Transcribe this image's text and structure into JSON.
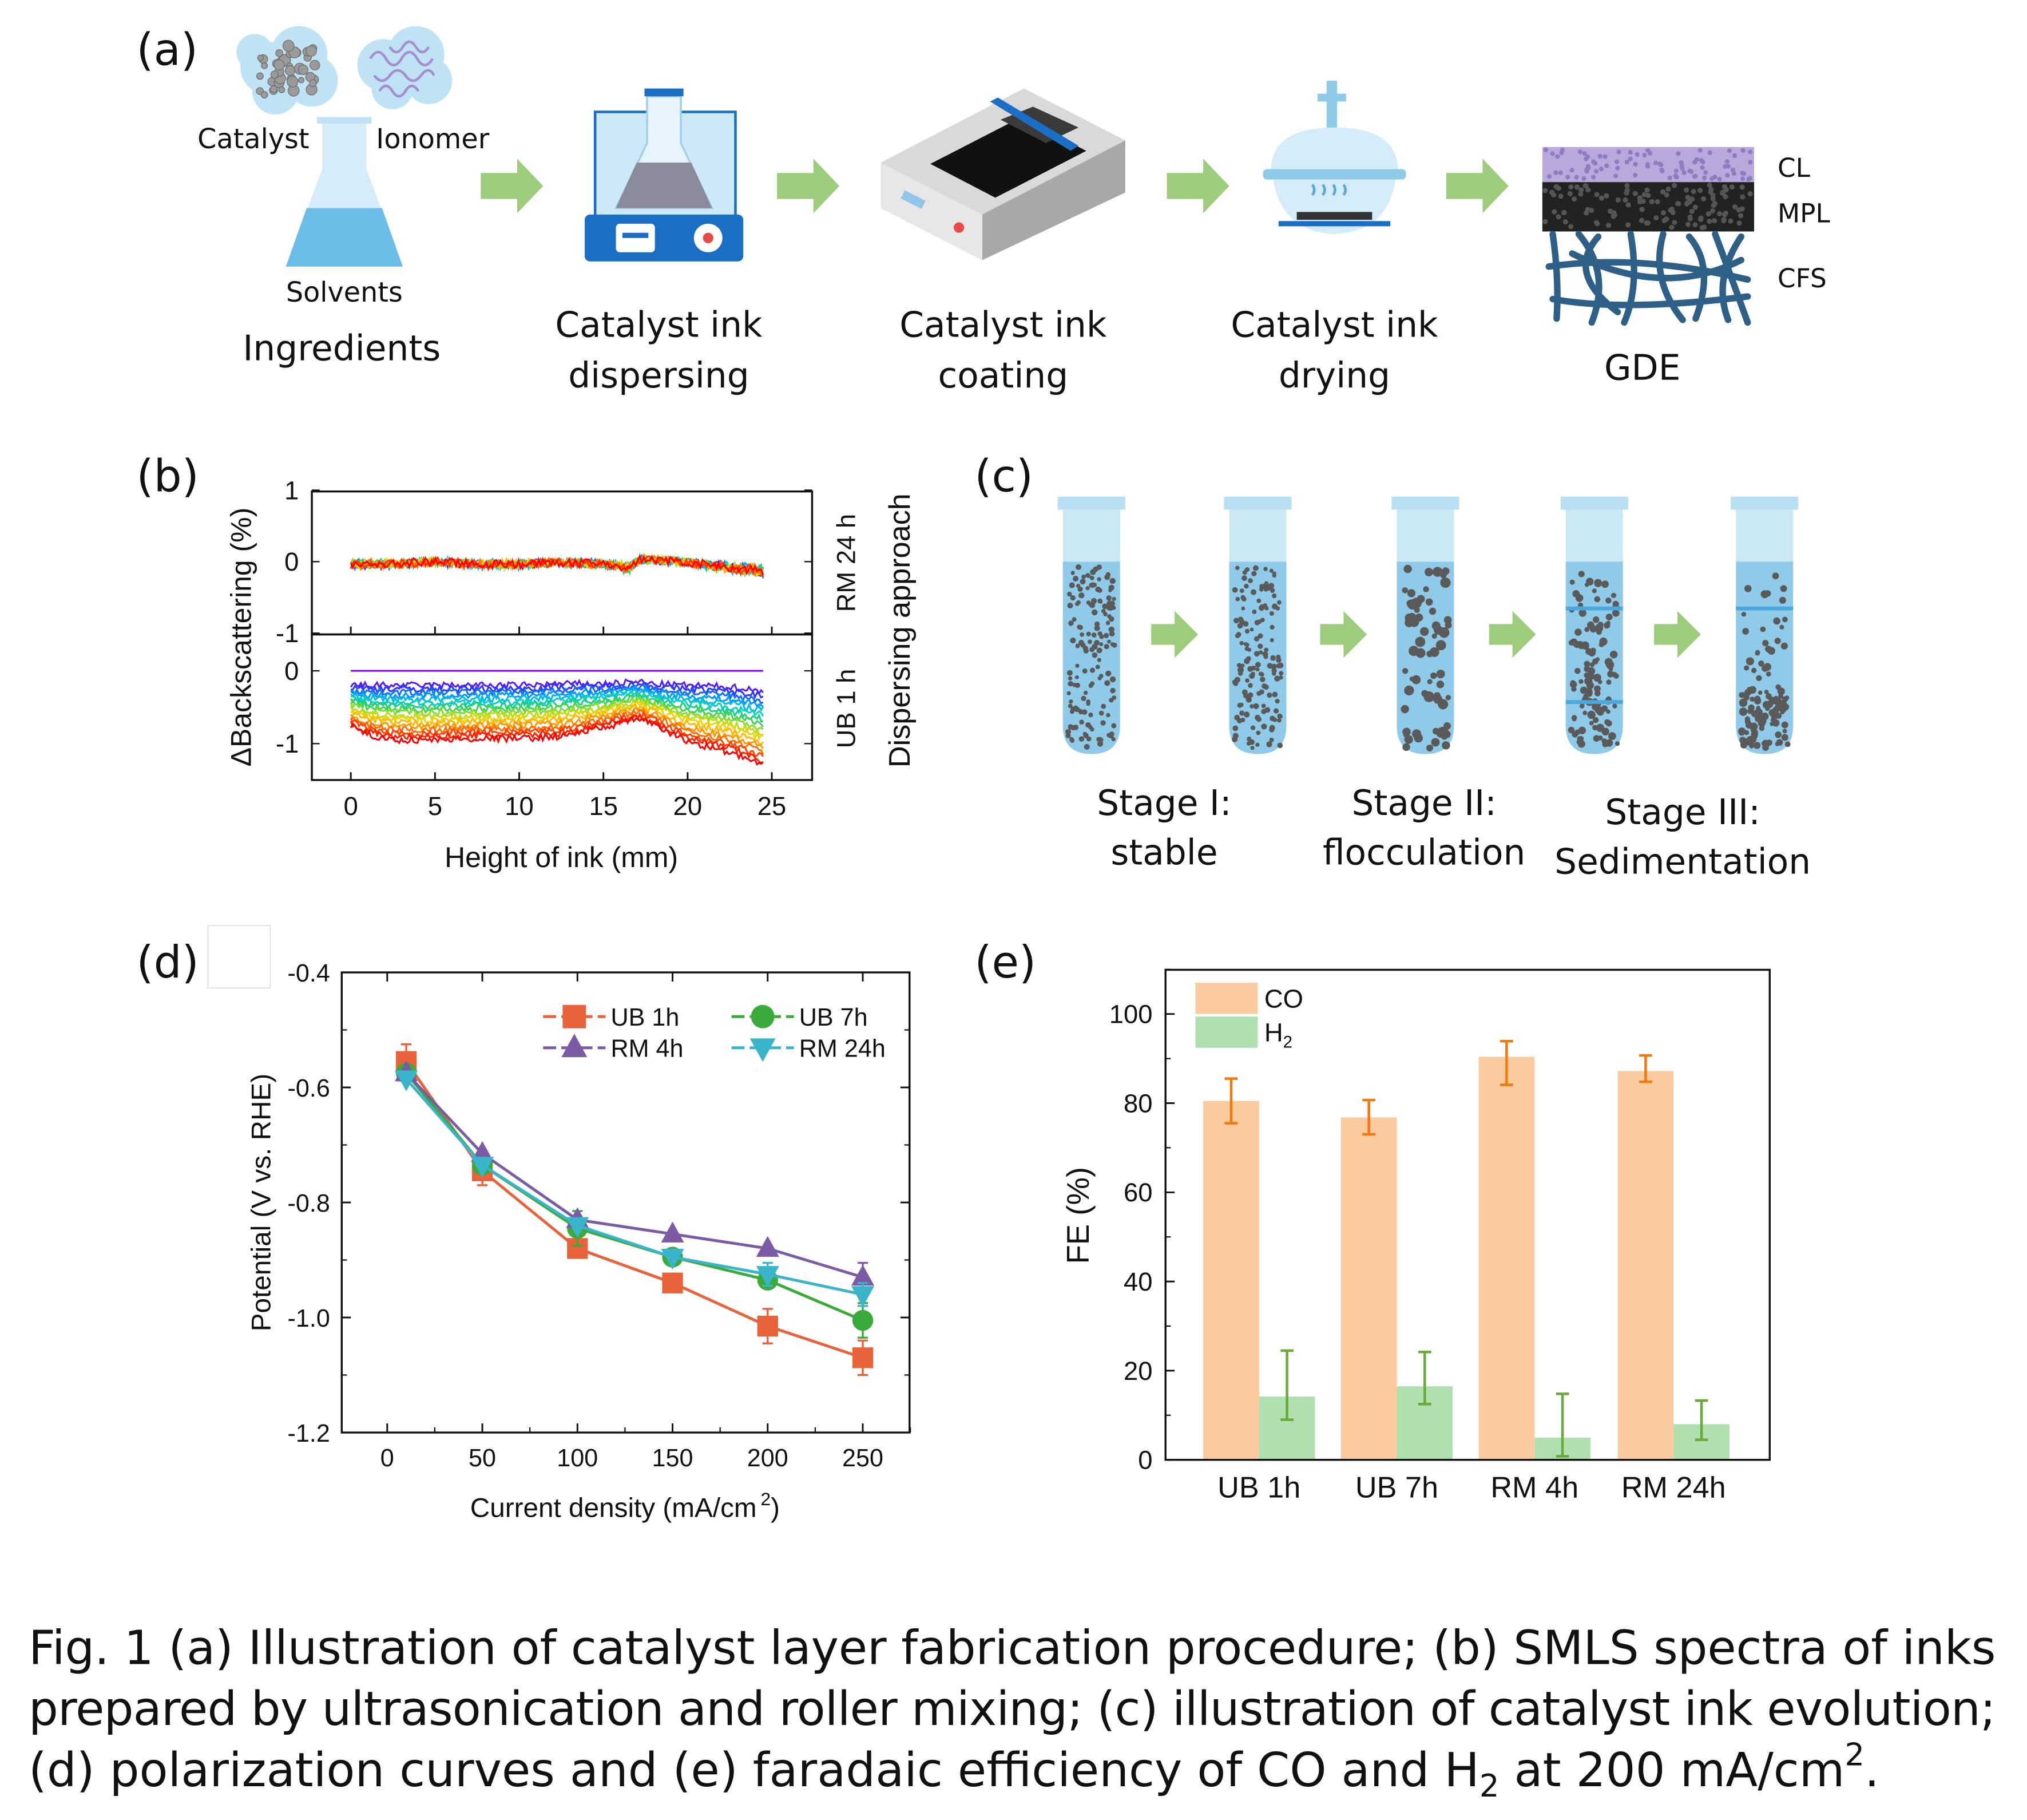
{
  "panel_labels": {
    "a": "(a)",
    "b": "(b)",
    "c": "(c)",
    "d": "(d)",
    "e": "(e)"
  },
  "panel_a": {
    "catalyst": "Catalyst",
    "ionomer": "Ionomer",
    "solvents": "Solvents",
    "ingredients": "Ingredients",
    "dispersing": [
      "Catalyst ink",
      "dispersing"
    ],
    "coating": [
      "Catalyst ink",
      "coating"
    ],
    "drying": [
      "Catalyst ink",
      "drying"
    ],
    "gde": "GDE",
    "layers": [
      "CL",
      "MPL",
      "CFS"
    ],
    "colors": {
      "arrow": "#9dcc7c",
      "ionomer": "#a58fd0",
      "liquid": "#6bbde8",
      "stirrer": "#1a6fc4",
      "cfs": "#2e5f86"
    }
  },
  "panel_c": {
    "stages": [
      {
        "title": "Stage I:",
        "name": "stable"
      },
      {
        "title": "Stage II:",
        "name": "flocculation"
      },
      {
        "title": "Stage III:",
        "name": "Sedimentation"
      }
    ]
  },
  "chart_data": [
    {
      "id": "b",
      "type": "line",
      "xlabel": "Height of ink (mm)",
      "ylabel": "ΔBackscattering (%)",
      "right_label": "Dispersing approach",
      "xlim": [
        -2.5,
        27.5
      ],
      "xticks": [
        "0",
        "5",
        "10",
        "15",
        "20",
        "25"
      ],
      "panels": [
        {
          "name": "RM 24 h",
          "ylim": [
            -1,
            1
          ],
          "yticks": [
            "1",
            "0",
            "-1"
          ],
          "x": [
            0,
            2.5,
            5,
            7.5,
            10,
            12.5,
            15,
            16.5,
            17.2,
            19.5,
            22.5,
            24.5
          ],
          "first_scan": [
            0,
            0,
            0,
            0,
            0,
            0,
            0,
            0,
            0,
            0,
            0,
            0
          ],
          "last_scan": [
            -0.05,
            -0.05,
            0.0,
            -0.05,
            -0.05,
            -0.02,
            -0.05,
            -0.12,
            0.05,
            0.0,
            -0.12,
            -0.18
          ]
        },
        {
          "name": "UB 1 h",
          "ylim": [
            -1.5,
            0.5
          ],
          "yticks": [
            "0",
            "-1"
          ],
          "x": [
            0,
            1,
            2.5,
            5,
            7.5,
            10,
            12.5,
            15,
            17.2,
            17.8,
            20,
            22.5,
            24.5
          ],
          "first_scan": [
            0,
            0,
            0,
            0,
            0,
            0,
            0,
            0,
            0,
            0,
            0,
            0,
            0
          ],
          "second_scan": [
            -0.2,
            -0.2,
            -0.2,
            -0.2,
            -0.2,
            -0.2,
            -0.18,
            -0.18,
            -0.15,
            -0.18,
            -0.2,
            -0.22,
            -0.28
          ],
          "last_scan": [
            -0.75,
            -0.88,
            -0.95,
            -0.95,
            -0.93,
            -0.93,
            -0.9,
            -0.78,
            -0.65,
            -0.72,
            -0.97,
            -1.12,
            -1.3
          ]
        }
      ],
      "colors": [
        "#7f00ff",
        "#3030ff",
        "#0090ff",
        "#00d0e0",
        "#20d060",
        "#a0e020",
        "#ffd000",
        "#ff9000",
        "#ff4000",
        "#ff0000"
      ]
    },
    {
      "id": "d",
      "type": "line",
      "xlabel": "Current density (mA/cm",
      "xlabel_sup": "2",
      "xlabel_end": ")",
      "ylabel": "Potential (V vs. RHE)",
      "xlim": [
        -25,
        275
      ],
      "ylim": [
        -1.2,
        -0.4
      ],
      "xticks": [
        "0",
        "50",
        "100",
        "150",
        "200",
        "250"
      ],
      "yticks": [
        "-0.4",
        "-0.6",
        "-0.8",
        "-1.0",
        "-1.2"
      ],
      "legend": "top-right",
      "x": [
        10,
        50,
        100,
        150,
        200,
        250
      ],
      "series": [
        {
          "name": "UB 1h",
          "marker": "square",
          "color": "#e8633a",
          "values": [
            -0.555,
            -0.745,
            -0.88,
            -0.94,
            -1.015,
            -1.07
          ],
          "error": [
            0.03,
            0.025,
            0.0,
            0.0,
            0.03,
            0.03
          ]
        },
        {
          "name": "UB 7h",
          "marker": "circle",
          "color": "#3aaa3a",
          "values": [
            -0.575,
            -0.735,
            -0.845,
            -0.895,
            -0.935,
            -1.005
          ],
          "error": [
            0.0,
            0.0,
            0.03,
            0.0,
            0.0,
            0.03
          ]
        },
        {
          "name": "RM 4h",
          "marker": "triangle-up",
          "color": "#7b5aa6",
          "values": [
            -0.575,
            -0.715,
            -0.83,
            -0.855,
            -0.88,
            -0.93
          ],
          "error": [
            0.0,
            0.0,
            0.0,
            0.0,
            0.0,
            0.025
          ]
        },
        {
          "name": "RM 24h",
          "marker": "triangle-down",
          "color": "#3ab4c8",
          "values": [
            -0.585,
            -0.735,
            -0.84,
            -0.895,
            -0.925,
            -0.96
          ],
          "error": [
            0.0,
            0.0,
            0.0,
            0.0,
            0.02,
            0.02
          ]
        }
      ]
    },
    {
      "id": "e",
      "type": "bar",
      "ylabel": "FE (%)",
      "ylim": [
        0,
        110
      ],
      "yticks": [
        "0",
        "20",
        "40",
        "60",
        "80",
        "100"
      ],
      "categories": [
        "UB 1h",
        "UB 7h",
        "RM 4h",
        "RM 24h"
      ],
      "legend": "top-left",
      "series": [
        {
          "name": "CO",
          "color": "#fbcba0",
          "err_color": "#f07a10",
          "values": [
            80.5,
            76.8,
            90.4,
            87.2
          ],
          "err_low": [
            75.5,
            73.0,
            84.1,
            84.8
          ],
          "err_high": [
            85.5,
            80.7,
            93.9,
            90.7
          ]
        },
        {
          "name": "H",
          "name_sub": "2",
          "color": "#b0e0b0",
          "err_color": "#6aaa3a",
          "values": [
            14.2,
            16.5,
            5.0,
            8.0
          ],
          "err_low": [
            9.0,
            12.5,
            0.8,
            4.5
          ],
          "err_high": [
            24.5,
            24.2,
            14.8,
            13.3
          ]
        }
      ]
    }
  ],
  "caption": {
    "line1": "Fig. 1 (a) Illustration of catalyst layer fabrication procedure; (b) SMLS spectra of inks",
    "line2": "prepared by ultrasonication and roller mixing; (c) illustration of catalyst ink evolution;",
    "line3_a": "(d) polarization curves and (e) faradaic efficiency of CO and H",
    "line3_sub": "2",
    "line3_b": " at 200 mA/cm",
    "line3_sup": "2",
    "line3_c": "."
  }
}
